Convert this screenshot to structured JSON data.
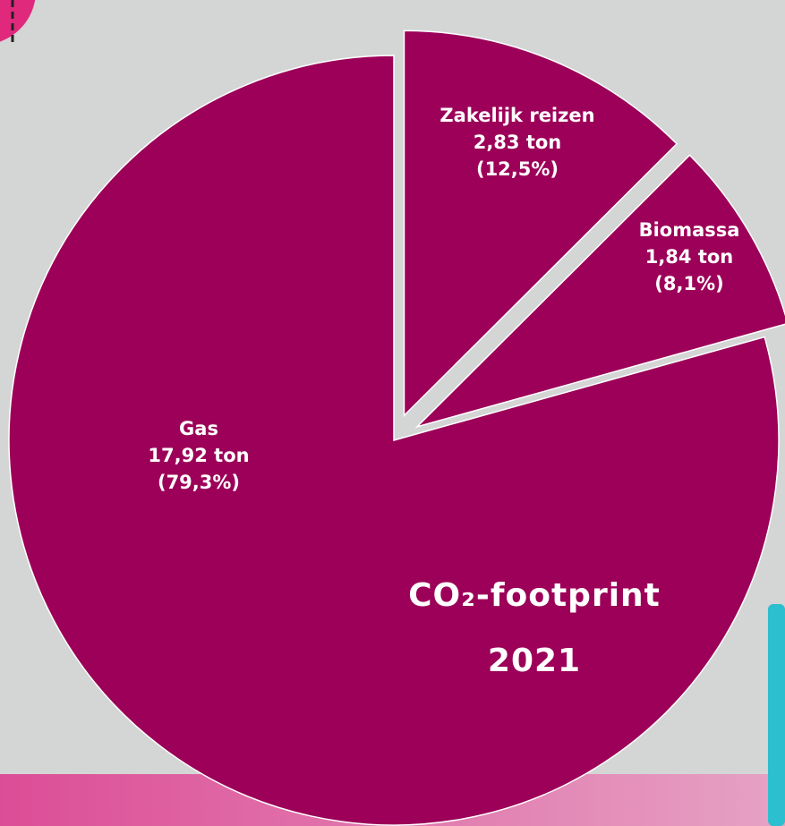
{
  "chart_data": {
    "type": "pie",
    "title": "CO₂-footprint",
    "subtitle": "2021",
    "categories": [
      "Zakelijk reizen",
      "Biomassa",
      "Gas"
    ],
    "values": [
      2.83,
      1.84,
      17.92
    ],
    "value_labels": [
      "2,83 ton",
      "1,84 ton",
      "17,92 ton"
    ],
    "percent_labels": [
      "(12,5%)",
      "(8,1%)",
      "(79,3%)"
    ],
    "color": "#9c0058"
  }
}
